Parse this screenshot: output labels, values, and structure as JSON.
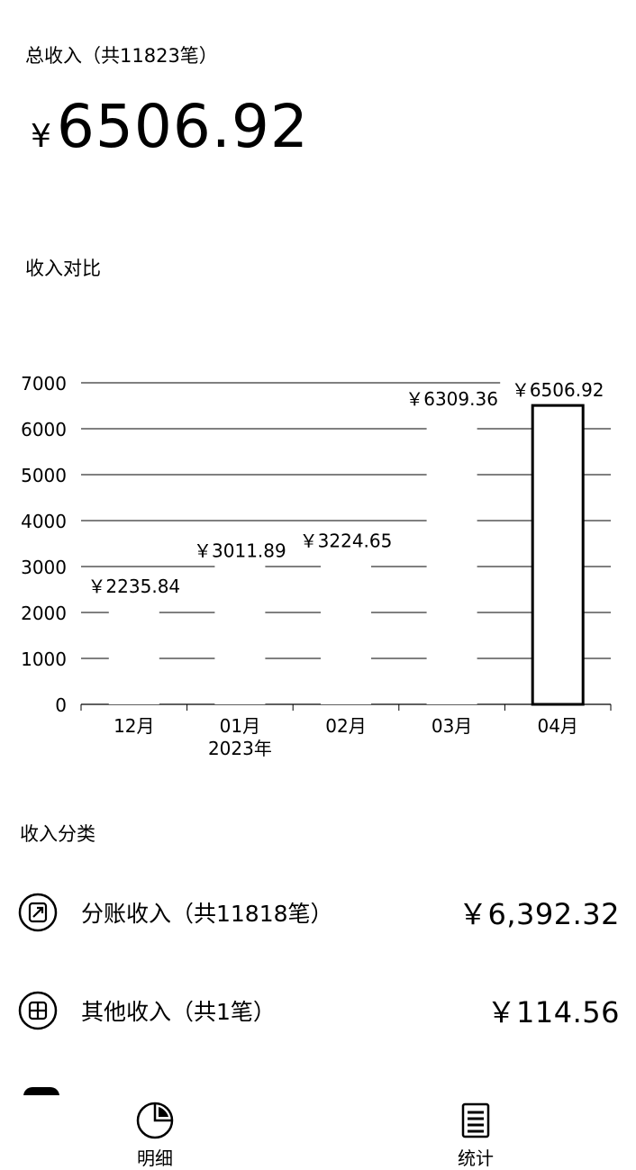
{
  "summary": {
    "total_label": "总收入（共11823笔）",
    "currency": "¥",
    "total_amount": "6506.92"
  },
  "comparison": {
    "title": "收入对比"
  },
  "chart_data": {
    "type": "bar",
    "categories": [
      "12月",
      "01月",
      "02月",
      "03月",
      "04月"
    ],
    "year_label": "2023年",
    "values": [
      2235.84,
      3011.89,
      3224.65,
      6309.36,
      6506.92
    ],
    "value_labels": [
      "￥2235.84",
      "￥3011.89",
      "￥3224.65",
      "￥6309.36",
      "￥6506.92"
    ],
    "ylim": [
      0,
      7000
    ],
    "yticks": [
      0,
      1000,
      2000,
      3000,
      4000,
      5000,
      6000,
      7000
    ],
    "highlighted_index": 4,
    "grid": true
  },
  "categories": {
    "title": "收入分类",
    "items": [
      {
        "label": "分账收入（共11818笔）",
        "amount": "￥6,392.32",
        "icon": "split-income-icon"
      },
      {
        "label": "其他收入（共1笔）",
        "amount": "￥114.56",
        "icon": "other-income-icon"
      }
    ]
  },
  "nav": {
    "items": [
      {
        "label": "明细",
        "icon": "pie-chart-icon"
      },
      {
        "label": "统计",
        "icon": "ledger-icon"
      }
    ]
  }
}
